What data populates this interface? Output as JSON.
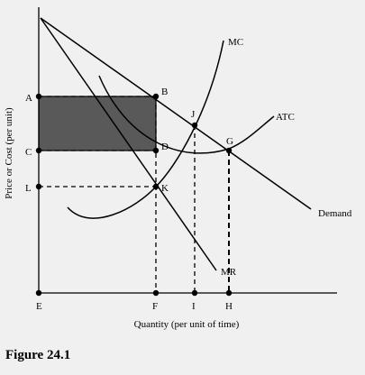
{
  "diagram": {
    "ylabel": "Price or Cost (per unit)",
    "xlabel": "Quantity (per unit of time)",
    "caption": "Figure 24.1",
    "curves": {
      "mc": "MC",
      "atc": "ATC",
      "mr": "MR",
      "demand": "Demand"
    },
    "points": {
      "A": "A",
      "B": "B",
      "C": "C",
      "D": "D",
      "J": "J",
      "G": "G",
      "L": "L",
      "K": "K"
    },
    "x_ticks": {
      "E": "E",
      "F": "F",
      "I": "I",
      "H": "H"
    },
    "colors": {
      "background": "#f0f0f0",
      "profit_rectangle": "#595959",
      "lines": "#000000"
    }
  }
}
